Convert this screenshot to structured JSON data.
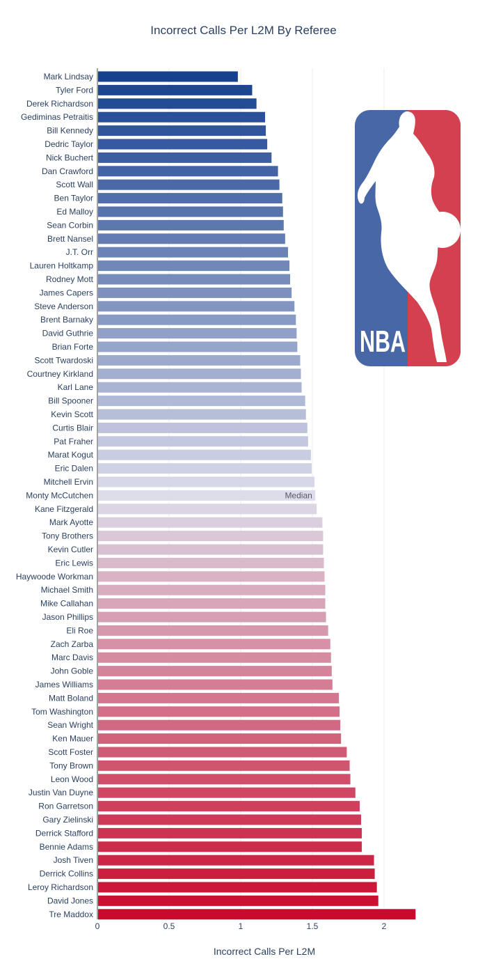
{
  "chart_data": {
    "type": "bar",
    "orientation": "horizontal",
    "title": "Incorrect Calls Per L2M By Referee",
    "xlabel": "Incorrect Calls Per L2M",
    "ylabel": "",
    "xlim": [
      0,
      2.25
    ],
    "xticks": [
      "0",
      "0.5",
      "1",
      "1.5",
      "2"
    ],
    "xtick_values": [
      0,
      0.5,
      1,
      1.5,
      2
    ],
    "grid": true,
    "annotation": {
      "text": "Median",
      "category": "Monty McCutchen"
    },
    "color_scale": {
      "low": "#17418f",
      "mid": "#dcdcea",
      "high": "#ca0a2c"
    },
    "categories": [
      "Mark Lindsay",
      "Tyler Ford",
      "Derek Richardson",
      "Gediminas Petraitis",
      "Bill Kennedy",
      "Dedric Taylor",
      "Nick Buchert",
      "Dan Crawford",
      "Scott Wall",
      "Ben Taylor",
      "Ed Malloy",
      "Sean Corbin",
      "Brett Nansel",
      "J.T. Orr",
      "Lauren Holtkamp",
      "Rodney Mott",
      "James Capers",
      "Steve Anderson",
      "Brent Barnaky",
      "David Guthrie",
      "Brian Forte",
      "Scott Twardoski",
      "Courtney Kirkland",
      "Karl Lane",
      "Bill Spooner",
      "Kevin Scott",
      "Curtis Blair",
      "Pat Fraher",
      "Marat Kogut",
      "Eric Dalen",
      "Mitchell Ervin",
      "Monty McCutchen",
      "Kane Fitzgerald",
      "Mark Ayotte",
      "Tony Brothers",
      "Kevin Cutler",
      "Eric Lewis",
      "Haywoode Workman",
      "Michael Smith",
      "Mike Callahan",
      "Jason Phillips",
      "Eli Roe",
      "Zach Zarba",
      "Marc Davis",
      "John Goble",
      "James Williams",
      "Matt Boland",
      "Tom Washington",
      "Sean Wright",
      "Ken Mauer",
      "Scott Foster",
      "Tony Brown",
      "Leon Wood",
      "Justin Van Duyne",
      "Ron Garretson",
      "Gary Zielinski",
      "Derrick Stafford",
      "Bennie Adams",
      "Josh Tiven",
      "Derrick Collins",
      "Leroy Richardson",
      "David Jones",
      "Tre Maddox"
    ],
    "values": [
      0.98,
      1.08,
      1.11,
      1.17,
      1.175,
      1.185,
      1.215,
      1.26,
      1.27,
      1.29,
      1.295,
      1.3,
      1.31,
      1.33,
      1.34,
      1.345,
      1.355,
      1.375,
      1.385,
      1.39,
      1.395,
      1.415,
      1.42,
      1.425,
      1.45,
      1.455,
      1.465,
      1.47,
      1.49,
      1.495,
      1.515,
      1.52,
      1.53,
      1.57,
      1.575,
      1.575,
      1.58,
      1.585,
      1.59,
      1.59,
      1.595,
      1.61,
      1.625,
      1.63,
      1.635,
      1.64,
      1.685,
      1.69,
      1.695,
      1.7,
      1.74,
      1.76,
      1.765,
      1.8,
      1.83,
      1.84,
      1.845,
      1.845,
      1.93,
      1.935,
      1.95,
      1.96,
      2.22
    ]
  },
  "logo": {
    "text": "NBA",
    "blue": "#4867a7",
    "red": "#d4404f"
  }
}
